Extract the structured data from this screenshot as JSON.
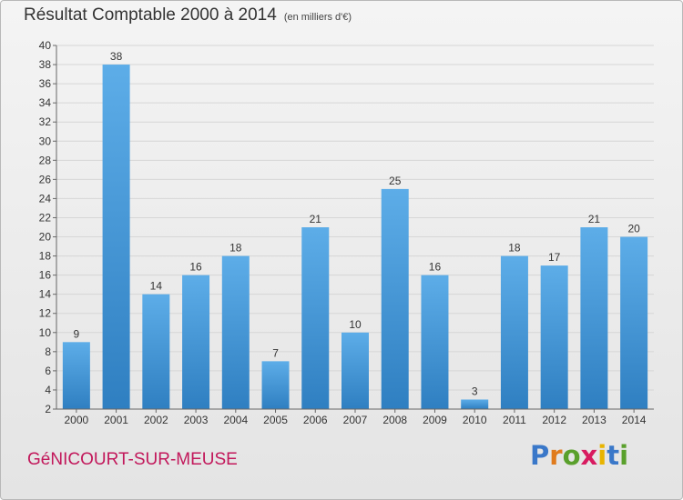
{
  "title": "Résultat Comptable 2000 à 2014",
  "unit": "(en milliers d'€)",
  "commune": "GéNICOURT-SUR-MEUSE",
  "brand": {
    "letters": [
      "P",
      "r",
      "o",
      "x",
      "i",
      "t",
      "i"
    ],
    "colors": [
      "#3a78c9",
      "#e07b1d",
      "#5aa02c",
      "#d81b60",
      "#e8b400",
      "#3a78c9",
      "#5aa02c"
    ]
  },
  "colors": {
    "bar_top": "#5dade8",
    "bar_bottom": "#2f7fc1",
    "axis": "#666666",
    "grid": "#d6d6d6",
    "commune": "#c2185b"
  },
  "chart_data": {
    "type": "bar",
    "categories": [
      "2000",
      "2001",
      "2002",
      "2003",
      "2004",
      "2005",
      "2006",
      "2007",
      "2008",
      "2009",
      "2010",
      "2011",
      "2012",
      "2013",
      "2014"
    ],
    "values": [
      9,
      38,
      14,
      16,
      18,
      7,
      21,
      10,
      25,
      16,
      3,
      18,
      17,
      21,
      20
    ],
    "ylim": [
      2,
      40
    ],
    "yticks": [
      2,
      4,
      6,
      8,
      10,
      12,
      14,
      16,
      18,
      20,
      22,
      24,
      26,
      28,
      30,
      32,
      34,
      36,
      38,
      40
    ],
    "grid": true,
    "xlabel": "",
    "ylabel": ""
  }
}
